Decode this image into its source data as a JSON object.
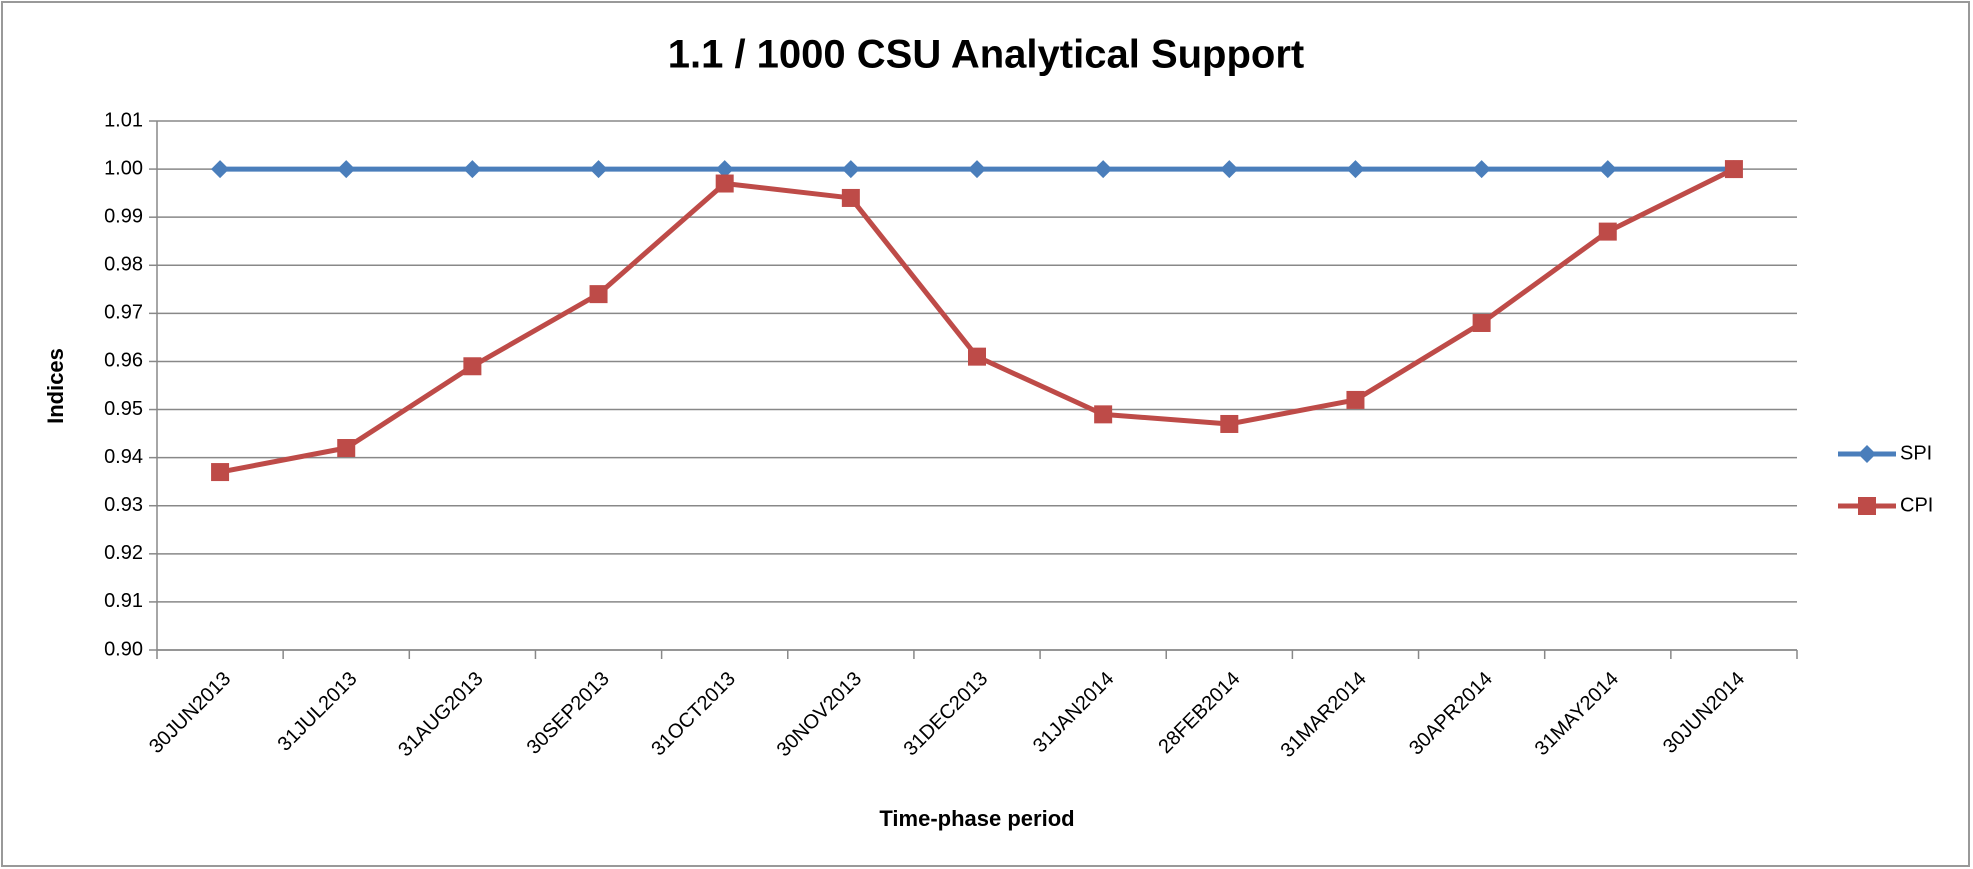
{
  "chart_data": {
    "type": "line",
    "title": "1.1 / 1000 CSU Analytical Support",
    "x_label": "Time-phase period",
    "y_label": "Indices",
    "categories": [
      "30JUN2013",
      "31JUL2013",
      "31AUG2013",
      "30SEP2013",
      "31OCT2013",
      "30NOV2013",
      "31DEC2013",
      "31JAN2014",
      "28FEB2014",
      "31MAR2014",
      "30APR2014",
      "31MAY2014",
      "30JUN2014"
    ],
    "series": [
      {
        "name": "SPI",
        "color": "#4a7ebb",
        "marker": "diamond",
        "values": [
          1,
          1,
          1,
          1,
          1,
          1,
          1,
          1,
          1,
          1,
          1,
          1,
          1
        ]
      },
      {
        "name": "CPI",
        "color": "#be4b48",
        "marker": "square",
        "values": [
          0.937,
          0.942,
          0.959,
          0.974,
          0.997,
          0.994,
          0.961,
          0.949,
          0.947,
          0.952,
          0.968,
          0.987,
          1
        ]
      }
    ],
    "ylim": [
      0.9,
      1.01
    ],
    "yticks": [
      {
        "value": 0.9,
        "label": "0.90"
      },
      0.91,
      0.92,
      0.93,
      0.94,
      0.95,
      0.96,
      0.97,
      0.98,
      0.99,
      {
        "value": 1,
        "label": "1.00"
      },
      1.01
    ],
    "grid": true,
    "legend": "right"
  }
}
